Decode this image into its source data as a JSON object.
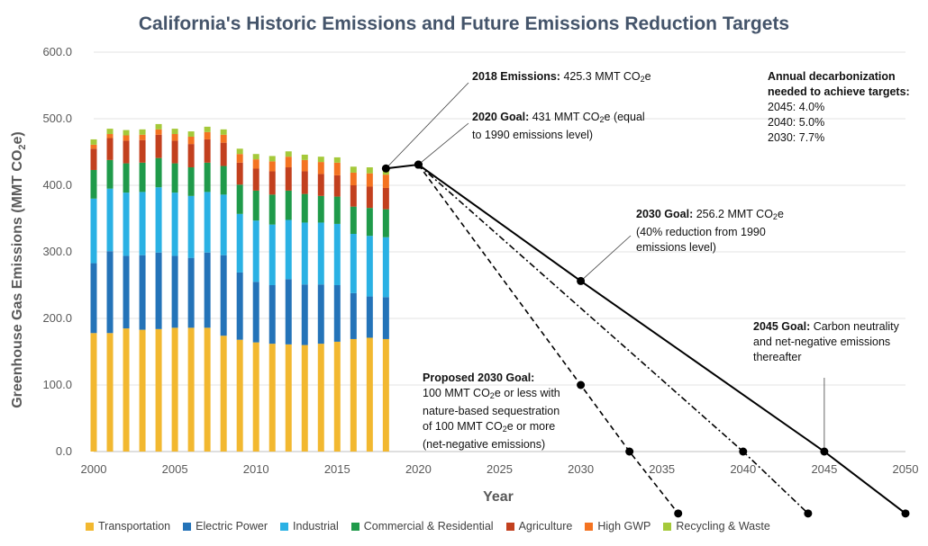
{
  "chart_data": {
    "type": "bar",
    "title": "California's Historic Emissions and Future Emissions Reduction Targets",
    "xlabel": "Year",
    "ylabel": "Greenhouse Gas Emissions (MMT CO2e)",
    "ylim": [
      0,
      600
    ],
    "xlim": [
      2000,
      2050
    ],
    "yticks": [
      "0.0",
      "100.0",
      "200.0",
      "300.0",
      "400.0",
      "500.0",
      "600.0"
    ],
    "xticks": [
      "2000",
      "2005",
      "2010",
      "2015",
      "2020",
      "2025",
      "2030",
      "2035",
      "2040",
      "2045",
      "2050"
    ],
    "grid": "horizontal",
    "legend_position": "bottom",
    "categories": [
      2000,
      2001,
      2002,
      2003,
      2004,
      2005,
      2006,
      2007,
      2008,
      2009,
      2010,
      2011,
      2012,
      2013,
      2014,
      2015,
      2016,
      2017,
      2018
    ],
    "series": [
      {
        "name": "Transportation",
        "color": "#f2b830",
        "values": [
          178,
          178,
          185,
          183,
          184,
          186,
          186,
          186,
          174,
          168,
          164,
          162,
          161,
          160,
          162,
          165,
          169,
          171,
          169
        ]
      },
      {
        "name": "Electric Power",
        "color": "#2473b8",
        "values": [
          105,
          123,
          109,
          112,
          115,
          108,
          105,
          113,
          121,
          101,
          91,
          88,
          98,
          91,
          89,
          85,
          69,
          62,
          63
        ]
      },
      {
        "name": "Industrial",
        "color": "#2ab1e4",
        "values": [
          97,
          94,
          95,
          95,
          98,
          95,
          93,
          91,
          91,
          88,
          92,
          91,
          89,
          93,
          93,
          92,
          89,
          91,
          90
        ]
      },
      {
        "name": "Commercial & Residential",
        "color": "#1f9a4a",
        "values": [
          43,
          43,
          44,
          44,
          44,
          44,
          43,
          44,
          43,
          44,
          45,
          45,
          44,
          43,
          40,
          41,
          41,
          42,
          42
        ]
      },
      {
        "name": "Agriculture",
        "color": "#c2401e",
        "values": [
          32,
          33,
          34,
          34,
          35,
          34,
          35,
          35,
          35,
          33,
          33,
          35,
          35,
          34,
          33,
          32,
          32,
          32,
          32
        ]
      },
      {
        "name": "High GWP",
        "color": "#f47321",
        "values": [
          6,
          6,
          8,
          8,
          8,
          10,
          11,
          11,
          12,
          13,
          14,
          15,
          16,
          17,
          18,
          19,
          19,
          20,
          20
        ]
      },
      {
        "name": "Recycling & Waste",
        "color": "#a5c93a",
        "values": [
          8,
          8,
          8,
          8,
          8,
          8,
          8,
          8,
          8,
          8,
          8,
          8,
          8,
          8,
          8,
          8,
          9,
          9,
          9
        ]
      }
    ],
    "projection_lines": [
      {
        "style": "solid",
        "points": [
          [
            2018,
            425.3
          ],
          [
            2020,
            431
          ],
          [
            2030,
            256.2
          ],
          [
            2045,
            0
          ],
          [
            2050,
            -93
          ]
        ]
      },
      {
        "style": "dashdot",
        "points": [
          [
            2020,
            431
          ],
          [
            2040,
            0
          ],
          [
            2044,
            -93
          ]
        ]
      },
      {
        "style": "dashed",
        "points": [
          [
            2020,
            431
          ],
          [
            2030,
            100
          ],
          [
            2033,
            0
          ],
          [
            2036,
            -93
          ]
        ]
      }
    ]
  },
  "legend": [
    {
      "label": "Transportation",
      "color": "#f2b830"
    },
    {
      "label": "Electric Power",
      "color": "#2473b8"
    },
    {
      "label": "Industrial",
      "color": "#2ab1e4"
    },
    {
      "label": "Commercial & Residential",
      "color": "#1f9a4a"
    },
    {
      "label": "Agriculture",
      "color": "#c2401e"
    },
    {
      "label": "High GWP",
      "color": "#f47321"
    },
    {
      "label": "Recycling & Waste",
      "color": "#a5c93a"
    }
  ],
  "annotations": {
    "e2018": {
      "bold": "2018 Emissions:",
      "text1": " 425.3 MMT CO",
      "sub": "2",
      "text2": "e"
    },
    "g2020": {
      "bold": "2020 Goal:",
      "text1": " 431 MMT CO",
      "sub": "2",
      "text2": "e (equal",
      "line2": "to 1990 emissions level)"
    },
    "g2030": {
      "bold": "2030 Goal:",
      "text1": " 256.2 MMT CO",
      "sub": "2",
      "text2": "e",
      "line2": "(40% reduction from 1990",
      "line3": "emissions level)"
    },
    "g2045": {
      "bold": "2045 Goal:",
      "text1": " Carbon neutrality",
      "line2": "and net-negative emissions",
      "line3": "thereafter"
    },
    "proposed": {
      "bold": "Proposed 2030 Goal:",
      "l1a": "100 MMT CO",
      "l1sub": "2",
      "l1b": "e or less with",
      "line2": "nature-based sequestration",
      "l3a": "of 100 MMT CO",
      "l3sub": "2",
      "l3b": "e or more",
      "line4": "(net-negative emissions)"
    },
    "decarb": {
      "bold1": "Annual decarbonization",
      "bold2": "needed to achieve targets:",
      "r1": "2045: 4.0%",
      "r2": "2040: 5.0%",
      "r3": "2030: 7.7%"
    }
  }
}
